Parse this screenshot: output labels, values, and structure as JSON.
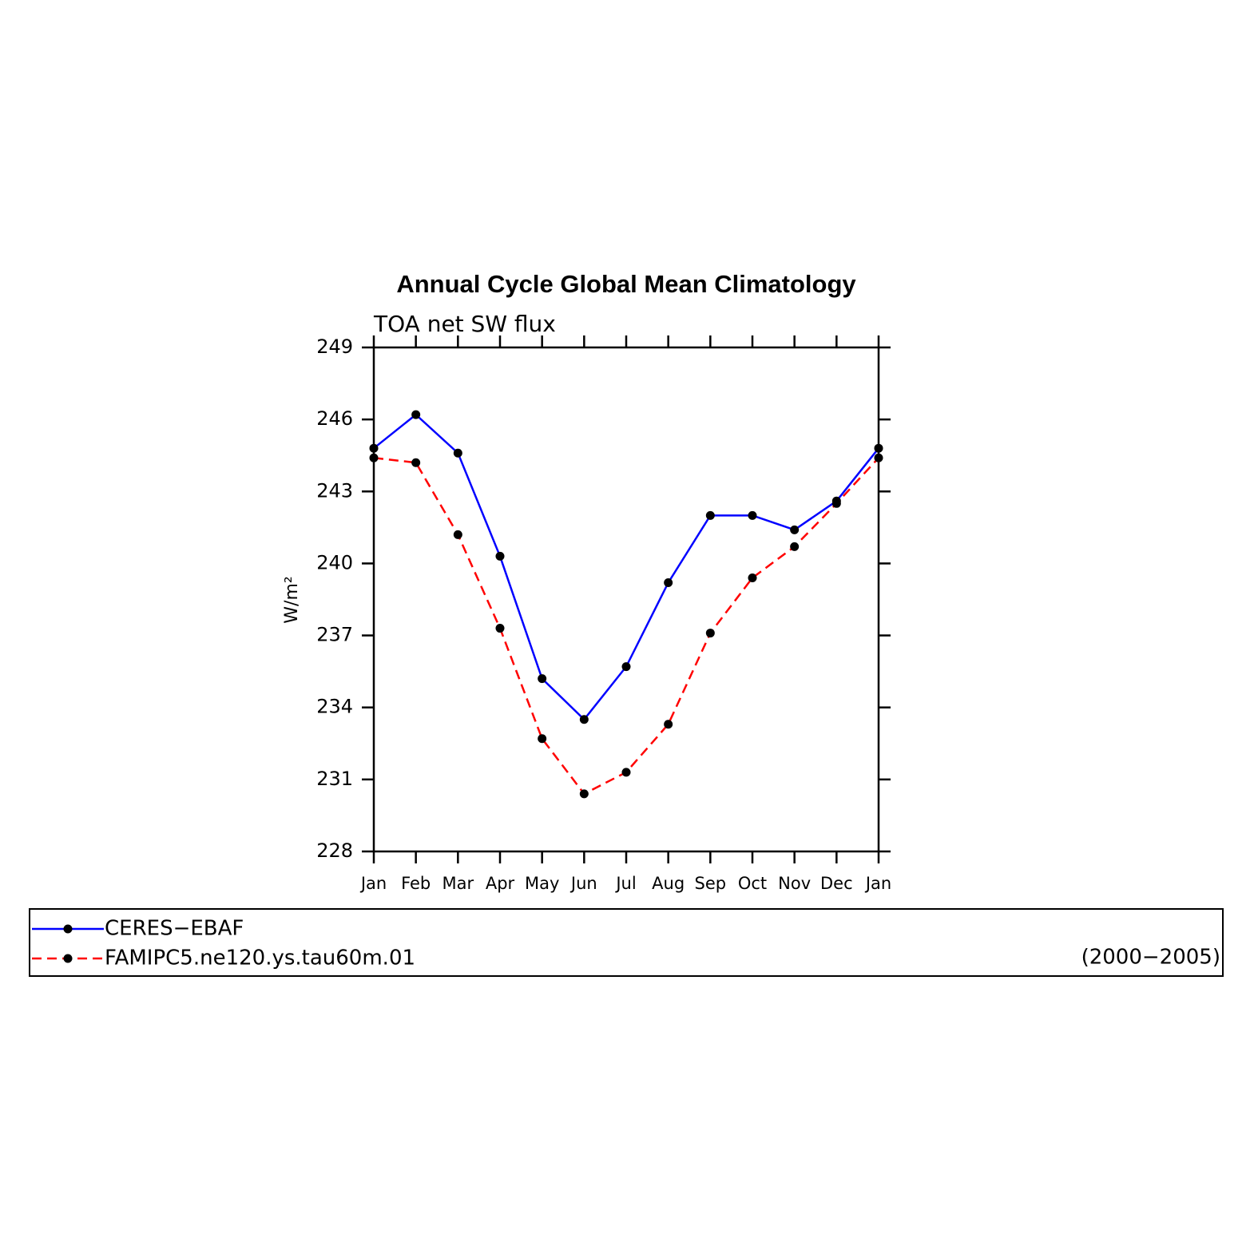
{
  "chart_data": {
    "type": "line",
    "title": "Annual Cycle Global Mean Climatology",
    "subtitle": "TOA net SW flux",
    "y_label": "W/m²",
    "annotation": "(2000−2005)",
    "categories": [
      "Jan",
      "Feb",
      "Mar",
      "Apr",
      "May",
      "Jun",
      "Jul",
      "Aug",
      "Sep",
      "Oct",
      "Nov",
      "Dec",
      "Jan"
    ],
    "series": [
      {
        "name": "CERES−EBAF",
        "color": "#0000ff",
        "dash": "solid",
        "values": [
          244.8,
          246.2,
          244.6,
          240.3,
          235.2,
          233.5,
          235.7,
          239.2,
          242.0,
          242.0,
          241.4,
          242.6,
          244.8
        ]
      },
      {
        "name": "FAMIPC5.ne120.ys.tau60m.01",
        "color": "#ff0000",
        "dash": "dashed",
        "values": [
          244.4,
          244.2,
          241.2,
          237.3,
          232.7,
          230.4,
          231.3,
          233.3,
          237.1,
          239.4,
          240.7,
          242.5,
          244.4
        ]
      }
    ],
    "ylim": [
      228,
      249
    ],
    "yticks": [
      228,
      231,
      234,
      237,
      240,
      243,
      246,
      249
    ],
    "legend": "bottom"
  }
}
